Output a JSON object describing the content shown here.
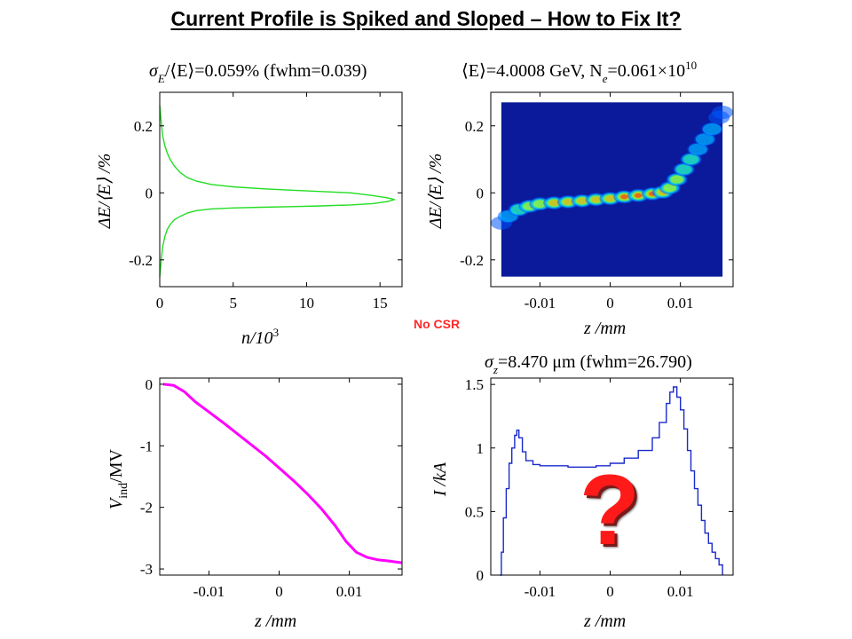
{
  "slide": {
    "title": "Current Profile is Spiked and Sloped – How to Fix It?",
    "annotation": "No CSR",
    "question_mark": "?"
  },
  "chart_data": [
    {
      "id": "energy-histogram",
      "type": "line",
      "title_parts": [
        "σ",
        "E",
        "/⟨E⟩=0.059% (fwhm=0.039)"
      ],
      "xlabel_parts": [
        "n/10",
        "3"
      ],
      "ylabel": "ΔE/⟨E⟩ /%",
      "xlim": [
        0,
        16.5
      ],
      "ylim": [
        -0.28,
        0.3
      ],
      "xticks": [
        0,
        5,
        10,
        15
      ],
      "xtick_labels": [
        "0",
        "5",
        "10",
        "15"
      ],
      "yticks": [
        -0.2,
        0,
        0.2
      ],
      "ytick_labels": [
        "-0.2",
        "0",
        "0.2"
      ],
      "color": "#22dd22",
      "series": [
        {
          "x": [
            0,
            0.1,
            0.2,
            0.35,
            0.5,
            0.7,
            1.0,
            1.4,
            1.9,
            2.5,
            3.5,
            5,
            7,
            9,
            11,
            13,
            14.5,
            15.5,
            16
          ],
          "y": [
            0.26,
            0.21,
            0.17,
            0.14,
            0.12,
            0.1,
            0.08,
            0.06,
            0.045,
            0.035,
            0.025,
            0.018,
            0.012,
            0.008,
            0.004,
            0.0,
            -0.008,
            -0.015,
            -0.02
          ]
        },
        {
          "x": [
            0,
            0.1,
            0.2,
            0.35,
            0.5,
            0.7,
            1.0,
            1.4,
            1.9,
            2.5,
            3.5,
            5,
            7,
            9,
            11,
            13,
            14.5,
            15.5,
            16
          ],
          "y": [
            -0.25,
            -0.2,
            -0.16,
            -0.13,
            -0.11,
            -0.095,
            -0.08,
            -0.07,
            -0.06,
            -0.053,
            -0.048,
            -0.045,
            -0.043,
            -0.041,
            -0.039,
            -0.036,
            -0.032,
            -0.026,
            -0.02
          ]
        }
      ]
    },
    {
      "id": "phase-space",
      "type": "heatmap",
      "title_parts": [
        "⟨E⟩=4.0008 GeV, N",
        "e",
        "=0.061×10",
        "10"
      ],
      "xlabel": "z /mm",
      "ylabel": "ΔE/⟨E⟩ /%",
      "xlim": [
        -0.017,
        0.0175
      ],
      "ylim": [
        -0.28,
        0.3
      ],
      "xticks": [
        -0.01,
        0,
        0.01
      ],
      "xtick_labels": [
        "-0.01",
        "0",
        "0.01"
      ],
      "yticks": [
        -0.2,
        0,
        0.2
      ],
      "ytick_labels": [
        "-0.2",
        "0",
        "0.2"
      ],
      "extent_x": [
        -0.0155,
        0.016
      ],
      "extent_y": [
        -0.25,
        0.27
      ],
      "background": "#0a1a9a",
      "band_z": [
        -0.0155,
        -0.0145,
        -0.013,
        -0.0115,
        -0.01,
        -0.008,
        -0.006,
        -0.004,
        -0.002,
        0,
        0.002,
        0.004,
        0.006,
        0.0075,
        0.0085,
        0.0095,
        0.0105,
        0.0115,
        0.0125,
        0.0135,
        0.0145,
        0.0155,
        0.016
      ],
      "band_y": [
        -0.09,
        -0.07,
        -0.05,
        -0.04,
        -0.033,
        -0.03,
        -0.027,
        -0.024,
        -0.02,
        -0.017,
        -0.012,
        -0.008,
        -0.003,
        0.002,
        0.015,
        0.04,
        0.07,
        0.1,
        0.13,
        0.16,
        0.19,
        0.225,
        0.24
      ],
      "band_intensity": [
        0.15,
        0.3,
        0.5,
        0.6,
        0.68,
        0.72,
        0.75,
        0.78,
        0.8,
        0.82,
        0.86,
        0.9,
        0.95,
        0.85,
        0.65,
        0.55,
        0.48,
        0.42,
        0.38,
        0.33,
        0.28,
        0.2,
        0.15
      ]
    },
    {
      "id": "induced-voltage",
      "type": "line",
      "ylabel_parts": [
        "V",
        "ind",
        "/MV"
      ],
      "xlabel": "z /mm",
      "xlim": [
        -0.017,
        0.0175
      ],
      "ylim": [
        -3.1,
        0.1
      ],
      "xticks": [
        -0.01,
        0,
        0.01
      ],
      "xtick_labels": [
        "-0.01",
        "0",
        "0.01"
      ],
      "yticks": [
        -3,
        -2,
        -1,
        0
      ],
      "ytick_labels": [
        "-3",
        "-2",
        "-1",
        "0"
      ],
      "color": "#ff00ff",
      "x": [
        -0.0165,
        -0.015,
        -0.0135,
        -0.012,
        -0.01,
        -0.008,
        -0.006,
        -0.004,
        -0.002,
        0,
        0.002,
        0.004,
        0.006,
        0.008,
        0.0095,
        0.011,
        0.0125,
        0.014,
        0.0155,
        0.0175
      ],
      "y": [
        0.0,
        -0.02,
        -0.12,
        -0.28,
        -0.45,
        -0.62,
        -0.8,
        -0.98,
        -1.16,
        -1.36,
        -1.56,
        -1.78,
        -2.02,
        -2.3,
        -2.55,
        -2.73,
        -2.81,
        -2.85,
        -2.87,
        -2.9
      ]
    },
    {
      "id": "current-profile",
      "type": "line",
      "title_parts": [
        "σ",
        "z",
        "=8.470 μm (fwhm=26.790)"
      ],
      "xlabel": "z /mm",
      "ylabel": "I /kA",
      "xlim": [
        -0.017,
        0.0175
      ],
      "ylim": [
        0,
        1.55
      ],
      "xticks": [
        -0.01,
        0,
        0.01
      ],
      "xtick_labels": [
        "-0.01",
        "0",
        "0.01"
      ],
      "yticks": [
        0,
        0.5,
        1,
        1.5
      ],
      "ytick_labels": [
        "0",
        "0.5",
        "1",
        "1.5"
      ],
      "color": "#1a2acc",
      "x": [
        -0.0157,
        -0.0155,
        -0.0152,
        -0.0148,
        -0.0144,
        -0.014,
        -0.0136,
        -0.0133,
        -0.013,
        -0.0125,
        -0.012,
        -0.011,
        -0.01,
        -0.008,
        -0.006,
        -0.004,
        -0.002,
        0,
        0.002,
        0.004,
        0.006,
        0.007,
        0.008,
        0.0085,
        0.009,
        0.0095,
        0.01,
        0.0105,
        0.011,
        0.0115,
        0.012,
        0.0125,
        0.013,
        0.0135,
        0.014,
        0.0145,
        0.015,
        0.0155,
        0.016
      ],
      "y": [
        0.0,
        0.18,
        0.45,
        0.68,
        0.88,
        1.0,
        1.1,
        1.14,
        1.08,
        0.97,
        0.9,
        0.87,
        0.86,
        0.86,
        0.85,
        0.85,
        0.86,
        0.88,
        0.92,
        0.98,
        1.08,
        1.2,
        1.35,
        1.44,
        1.48,
        1.4,
        1.3,
        1.15,
        0.98,
        0.82,
        0.68,
        0.55,
        0.43,
        0.33,
        0.25,
        0.18,
        0.13,
        0.08,
        0.0
      ]
    }
  ]
}
